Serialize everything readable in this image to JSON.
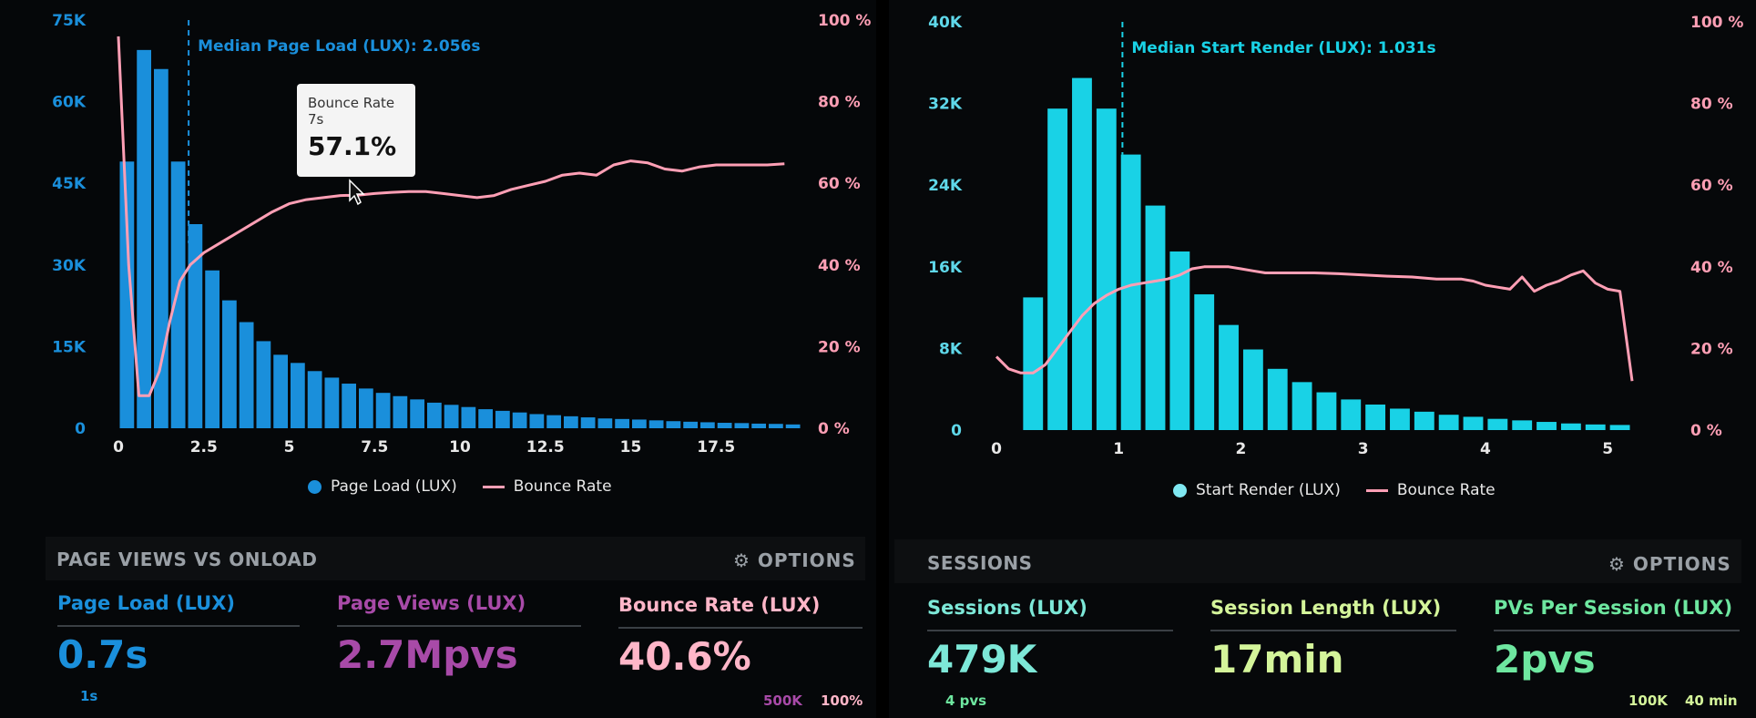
{
  "chart_data": [
    {
      "type": "bar",
      "title": "",
      "annotation": "Median Page Load (LUX): 2.056s",
      "median_x": 2.056,
      "xlabel": "",
      "ylabel": "",
      "x_ticks": [
        "0",
        "2.5",
        "5",
        "7.5",
        "10",
        "12.5",
        "15",
        "17.5"
      ],
      "y_ticks": [
        "0",
        "15K",
        "30K",
        "45K",
        "60K",
        "75K"
      ],
      "y2_ticks": [
        "0 %",
        "20 %",
        "40 %",
        "60 %",
        "80 %",
        "100 %"
      ],
      "xlim": [
        0,
        20
      ],
      "ylim": [
        0,
        75000
      ],
      "y2lim": [
        0,
        100
      ],
      "series": [
        {
          "name": "Page Load (LUX)",
          "kind": "bar",
          "bin_width": 0.5,
          "x": [
            0,
            0.5,
            1,
            1.5,
            2,
            2.5,
            3,
            3.5,
            4,
            4.5,
            5,
            5.5,
            6,
            6.5,
            7,
            7.5,
            8,
            8.5,
            9,
            9.5,
            10,
            10.5,
            11,
            11.5,
            12,
            12.5,
            13,
            13.5,
            14,
            14.5,
            15,
            15.5,
            16,
            16.5,
            17,
            17.5,
            18,
            18.5,
            19,
            19.5
          ],
          "values": [
            49000,
            69500,
            66000,
            49000,
            37500,
            29000,
            23500,
            19500,
            16000,
            13500,
            12000,
            10500,
            9300,
            8200,
            7300,
            6500,
            5900,
            5300,
            4700,
            4300,
            3900,
            3500,
            3200,
            2900,
            2600,
            2400,
            2200,
            2000,
            1800,
            1700,
            1600,
            1450,
            1300,
            1200,
            1100,
            1000,
            950,
            850,
            800,
            700
          ]
        },
        {
          "name": "Bounce Rate",
          "kind": "line",
          "axis": "y2",
          "x": [
            0,
            0.3,
            0.6,
            0.9,
            1.2,
            1.5,
            1.8,
            2.1,
            2.5,
            3,
            3.5,
            4,
            4.5,
            5,
            5.5,
            6,
            6.5,
            7,
            7.5,
            8,
            8.5,
            9,
            9.5,
            10,
            10.5,
            11,
            11.5,
            12,
            12.5,
            13,
            13.5,
            14,
            14.5,
            15,
            15.5,
            16,
            16.5,
            17,
            17.5,
            18,
            18.5,
            19,
            19.5
          ],
          "values": [
            96,
            40,
            8,
            8,
            14,
            26,
            36,
            40,
            43,
            45.5,
            48,
            50.5,
            53,
            55,
            56,
            56.5,
            57,
            57.1,
            57.5,
            57.8,
            58,
            58,
            57.5,
            57,
            56.5,
            57,
            58.5,
            59.5,
            60.5,
            62,
            62.5,
            62,
            64.5,
            65.5,
            65,
            63.5,
            63,
            64,
            64.5,
            64.5,
            64.5,
            64.5,
            64.8
          ]
        }
      ],
      "legend": [
        "Page Load (LUX)",
        "Bounce Rate"
      ],
      "tooltip": {
        "series": "Bounce Rate",
        "x_label": "7s",
        "value": "57.1%"
      },
      "colors": {
        "bar": "#1a8fdb",
        "line": "#ff9fb5",
        "axis_left": "#1a8fdb",
        "axis_right": "#ff9fb5",
        "median": "#1a8fdb"
      }
    },
    {
      "type": "bar",
      "title": "",
      "annotation": "Median Start Render (LUX): 1.031s",
      "median_x": 1.031,
      "xlabel": "",
      "ylabel": "",
      "x_ticks": [
        "0",
        "1",
        "2",
        "3",
        "4",
        "5"
      ],
      "y_ticks": [
        "0",
        "8K",
        "16K",
        "24K",
        "32K",
        "40K"
      ],
      "y2_ticks": [
        "0 %",
        "20 %",
        "40 %",
        "60 %",
        "80 %",
        "100 %"
      ],
      "xlim": [
        0,
        5.2
      ],
      "ylim": [
        0,
        40000
      ],
      "y2lim": [
        0,
        100
      ],
      "series": [
        {
          "name": "Start Render (LUX)",
          "kind": "bar",
          "bin_width": 0.2,
          "x": [
            0.2,
            0.4,
            0.6,
            0.8,
            1.0,
            1.2,
            1.4,
            1.6,
            1.8,
            2.0,
            2.2,
            2.4,
            2.6,
            2.8,
            3.0,
            3.2,
            3.4,
            3.6,
            3.8,
            4.0,
            4.2,
            4.4,
            4.6,
            4.8,
            5.0
          ],
          "values": [
            13000,
            31500,
            34500,
            31500,
            27000,
            22000,
            17500,
            13300,
            10300,
            7900,
            6000,
            4700,
            3700,
            3000,
            2500,
            2100,
            1800,
            1500,
            1300,
            1100,
            950,
            800,
            650,
            550,
            500
          ]
        },
        {
          "name": "Bounce Rate",
          "kind": "line",
          "axis": "y2",
          "x": [
            0,
            0.1,
            0.2,
            0.3,
            0.4,
            0.5,
            0.6,
            0.7,
            0.8,
            0.9,
            1.0,
            1.1,
            1.2,
            1.3,
            1.4,
            1.5,
            1.6,
            1.7,
            1.8,
            1.9,
            2.0,
            2.1,
            2.2,
            2.4,
            2.6,
            2.8,
            3.0,
            3.2,
            3.4,
            3.6,
            3.8,
            3.9,
            4.0,
            4.1,
            4.2,
            4.3,
            4.4,
            4.5,
            4.6,
            4.7,
            4.8,
            4.9,
            5.0,
            5.1,
            5.2
          ],
          "values": [
            18,
            15,
            14,
            14,
            16,
            20,
            24,
            28,
            31,
            33,
            34.5,
            35.5,
            36,
            36.5,
            37,
            38,
            39.5,
            40,
            40,
            40,
            39.5,
            39,
            38.5,
            38.5,
            38.5,
            38.3,
            38,
            37.7,
            37.5,
            37,
            37,
            36.5,
            35.5,
            35,
            34.5,
            37.5,
            34,
            35.5,
            36.5,
            38,
            39,
            36,
            34.5,
            34,
            12
          ]
        }
      ],
      "legend": [
        "Start Render (LUX)",
        "Bounce Rate"
      ],
      "colors": {
        "bar": "#19d2e6",
        "line": "#ff9fb5",
        "axis_left": "#5fd8ea",
        "axis_right": "#ff9fb5",
        "median": "#19d2e6"
      }
    }
  ],
  "left": {
    "section_title": "PAGE VIEWS VS ONLOAD",
    "options_label": "OPTIONS",
    "metrics": [
      {
        "label": "Page Load (LUX)",
        "value": "0.7s",
        "color": "#1a8fdb"
      },
      {
        "label": "Page Views (LUX)",
        "value": "2.7Mpvs",
        "color": "#a84aa8"
      },
      {
        "label": "Bounce Rate (LUX)",
        "value": "40.6%",
        "color": "#ffb6c8"
      }
    ],
    "sub": {
      "left": "1s",
      "mid": "500K",
      "right": "100%"
    }
  },
  "right": {
    "section_title": "SESSIONS",
    "options_label": "OPTIONS",
    "metrics": [
      {
        "label": "Sessions (LUX)",
        "value": "479K",
        "color": "#7de8d8"
      },
      {
        "label": "Session Length (LUX)",
        "value": "17min",
        "color": "#d4f59a"
      },
      {
        "label": "PVs Per Session (LUX)",
        "value": "2pvs",
        "color": "#6ee7a0"
      }
    ],
    "sub": {
      "left": "4 pvs",
      "mid": "100K",
      "right": "40 min"
    }
  }
}
